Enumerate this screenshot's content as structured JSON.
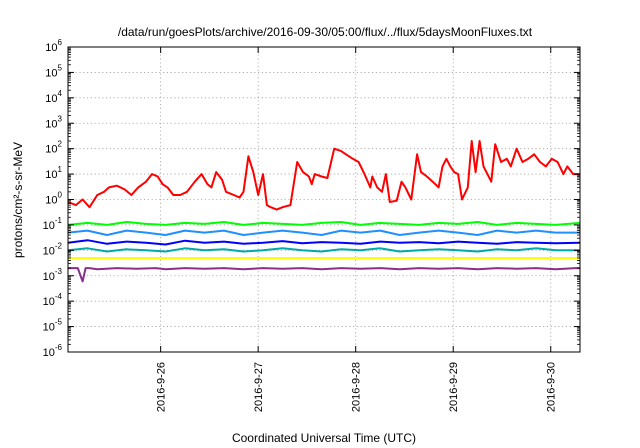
{
  "chart_data": {
    "type": "line",
    "title": "/data/run/goesPlots/archive/2016-09-30/05:00/flux/../flux/5daysMoonFluxes.txt",
    "xlabel": "Coordinated Universal Time (UTC)",
    "ylabel": "protons/cm²-s-sr-MeV",
    "yscale": "log",
    "ylim_exp": [
      -6,
      6
    ],
    "y_tick_base": "10",
    "y_tick_exponents": [
      "6",
      "5",
      "4",
      "3",
      "2",
      "1",
      "0",
      "-1",
      "-2",
      "-3",
      "-4",
      "-5",
      "-6"
    ],
    "x_range_days": [
      0,
      5.25
    ],
    "x_tick_labels": [
      "2016-9-26",
      "2016-9-27",
      "2016-9-28",
      "2016-9-29",
      "2016-9-30"
    ],
    "x_tick_days": [
      0.95,
      1.95,
      2.95,
      3.95,
      4.95
    ],
    "grid": true,
    "legend": "none",
    "series": [
      {
        "color": "#ff0000",
        "x": [
          0.0,
          0.08,
          0.15,
          0.22,
          0.3,
          0.37,
          0.42,
          0.5,
          0.58,
          0.65,
          0.72,
          0.8,
          0.86,
          0.92,
          0.97,
          1.02,
          1.08,
          1.15,
          1.22,
          1.3,
          1.37,
          1.43,
          1.47,
          1.52,
          1.58,
          1.62,
          1.7,
          1.76,
          1.8,
          1.85,
          1.9,
          1.95,
          2.0,
          2.04,
          2.08,
          2.14,
          2.2,
          2.28,
          2.35,
          2.41,
          2.47,
          2.5,
          2.53,
          2.6,
          2.66,
          2.73,
          2.8,
          2.85,
          2.92,
          2.98,
          3.04,
          3.1,
          3.12,
          3.17,
          3.22,
          3.26,
          3.3,
          3.37,
          3.42,
          3.46,
          3.52,
          3.58,
          3.62,
          3.68,
          3.74,
          3.8,
          3.84,
          3.88,
          3.92,
          3.96,
          4.0,
          4.04,
          4.1,
          4.14,
          4.18,
          4.22,
          4.26,
          4.3,
          4.34,
          4.38,
          4.44,
          4.5,
          4.54,
          4.6,
          4.66,
          4.72,
          4.78,
          4.84,
          4.9,
          4.96,
          5.02,
          5.08,
          5.12,
          5.18,
          5.25
        ],
        "y": [
          0.8,
          0.6,
          1.0,
          0.5,
          1.5,
          2.0,
          3.0,
          3.5,
          2.5,
          1.5,
          3.0,
          5.0,
          10.0,
          8.0,
          4.0,
          3.0,
          1.5,
          1.5,
          2.0,
          5.0,
          10.0,
          4.0,
          3.0,
          12.0,
          6.0,
          2.0,
          1.5,
          1.2,
          2.0,
          50.0,
          12.0,
          1.5,
          10.0,
          0.6,
          0.5,
          0.4,
          0.5,
          0.6,
          30.0,
          12.0,
          8.0,
          4.0,
          10.0,
          8.0,
          7.0,
          100.0,
          80.0,
          60.0,
          40.0,
          30.0,
          10.0,
          3.0,
          8.0,
          3.0,
          2.0,
          10.0,
          0.8,
          0.9,
          5.0,
          3.0,
          1.0,
          60.0,
          12.0,
          8.0,
          5.0,
          3.0,
          20.0,
          40.0,
          20.0,
          12.0,
          10.0,
          1.0,
          3.0,
          200.0,
          12.0,
          200.0,
          20.0,
          10.0,
          5.0,
          150.0,
          30.0,
          40.0,
          20.0,
          100.0,
          30.0,
          40.0,
          60.0,
          30.0,
          20.0,
          40.0,
          30.0,
          10.0,
          20.0,
          10.0,
          10.0
        ]
      },
      {
        "color": "#00ff00",
        "x": [
          0.0,
          0.2,
          0.4,
          0.6,
          0.8,
          1.0,
          1.2,
          1.4,
          1.6,
          1.8,
          2.0,
          2.2,
          2.4,
          2.6,
          2.8,
          3.0,
          3.2,
          3.4,
          3.6,
          3.8,
          4.0,
          4.2,
          4.4,
          4.6,
          4.8,
          5.0,
          5.25
        ],
        "y": [
          0.1,
          0.12,
          0.1,
          0.13,
          0.11,
          0.1,
          0.12,
          0.11,
          0.13,
          0.1,
          0.12,
          0.11,
          0.1,
          0.12,
          0.13,
          0.1,
          0.12,
          0.11,
          0.1,
          0.12,
          0.11,
          0.13,
          0.1,
          0.12,
          0.11,
          0.1,
          0.12
        ]
      },
      {
        "color": "#1e90ff",
        "x": [
          0.0,
          0.2,
          0.4,
          0.6,
          0.8,
          1.0,
          1.2,
          1.4,
          1.6,
          1.8,
          2.0,
          2.2,
          2.4,
          2.6,
          2.8,
          3.0,
          3.2,
          3.4,
          3.6,
          3.8,
          4.0,
          4.2,
          4.4,
          4.6,
          4.8,
          5.0,
          5.25
        ],
        "y": [
          0.05,
          0.06,
          0.04,
          0.06,
          0.05,
          0.04,
          0.06,
          0.05,
          0.06,
          0.04,
          0.05,
          0.06,
          0.05,
          0.04,
          0.06,
          0.05,
          0.06,
          0.04,
          0.05,
          0.06,
          0.05,
          0.04,
          0.06,
          0.05,
          0.06,
          0.05,
          0.05
        ]
      },
      {
        "color": "#0000ff",
        "x": [
          0.0,
          0.2,
          0.4,
          0.6,
          0.8,
          1.0,
          1.2,
          1.4,
          1.6,
          1.8,
          2.0,
          2.2,
          2.4,
          2.6,
          2.8,
          3.0,
          3.2,
          3.4,
          3.6,
          3.8,
          4.0,
          4.2,
          4.4,
          4.6,
          4.8,
          5.0,
          5.25
        ],
        "y": [
          0.02,
          0.025,
          0.018,
          0.022,
          0.02,
          0.017,
          0.024,
          0.02,
          0.022,
          0.018,
          0.02,
          0.023,
          0.019,
          0.021,
          0.02,
          0.018,
          0.022,
          0.02,
          0.021,
          0.019,
          0.022,
          0.02,
          0.018,
          0.021,
          0.02,
          0.019,
          0.02
        ]
      },
      {
        "color": "#00aaaa",
        "x": [
          0.0,
          0.2,
          0.4,
          0.6,
          0.8,
          1.0,
          1.2,
          1.4,
          1.6,
          1.8,
          2.0,
          2.2,
          2.4,
          2.6,
          2.8,
          3.0,
          3.2,
          3.4,
          3.6,
          3.8,
          4.0,
          4.2,
          4.4,
          4.6,
          4.8,
          5.0,
          5.25
        ],
        "y": [
          0.01,
          0.012,
          0.009,
          0.011,
          0.01,
          0.009,
          0.012,
          0.01,
          0.011,
          0.009,
          0.01,
          0.012,
          0.01,
          0.009,
          0.011,
          0.01,
          0.012,
          0.009,
          0.01,
          0.011,
          0.01,
          0.009,
          0.011,
          0.01,
          0.012,
          0.01,
          0.01
        ]
      },
      {
        "color": "#ffff00",
        "x": [
          0.0,
          0.5,
          1.0,
          1.5,
          2.0,
          2.5,
          3.0,
          3.5,
          4.0,
          4.5,
          5.0,
          5.25
        ],
        "y": [
          0.005,
          0.005,
          0.005,
          0.005,
          0.005,
          0.005,
          0.005,
          0.005,
          0.005,
          0.005,
          0.005,
          0.005
        ]
      },
      {
        "color": "#8b2f8b",
        "x": [
          0.0,
          0.1,
          0.15,
          0.18,
          0.22,
          0.3,
          0.5,
          0.7,
          0.9,
          1.0,
          1.2,
          1.4,
          1.6,
          1.8,
          2.0,
          2.2,
          2.4,
          2.6,
          2.8,
          3.0,
          3.2,
          3.4,
          3.6,
          3.8,
          4.0,
          4.2,
          4.4,
          4.6,
          4.8,
          5.0,
          5.2,
          5.25
        ],
        "y": [
          0.002,
          0.002,
          0.0006,
          0.002,
          0.002,
          0.0018,
          0.002,
          0.0019,
          0.002,
          0.0018,
          0.002,
          0.0019,
          0.002,
          0.0018,
          0.002,
          0.0019,
          0.002,
          0.0018,
          0.002,
          0.0019,
          0.002,
          0.0018,
          0.002,
          0.0019,
          0.002,
          0.0018,
          0.002,
          0.0019,
          0.002,
          0.0018,
          0.002,
          0.002
        ]
      }
    ]
  }
}
